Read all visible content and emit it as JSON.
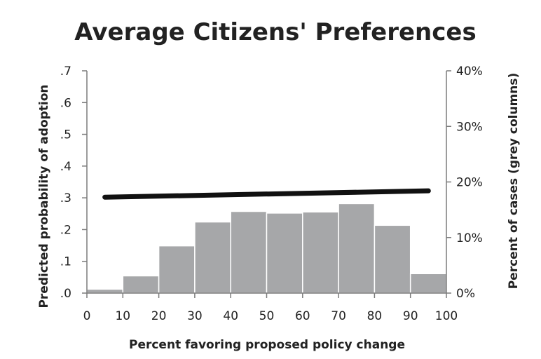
{
  "chart_data": {
    "type": "bar+line",
    "title": "Average Citizens' Preferences",
    "xlabel": "Percent favoring proposed policy change",
    "ylabel_left": "Predicted probability of adoption",
    "ylabel_right": "Percent of cases (grey columns)",
    "x_ticks": [
      "0",
      "10",
      "20",
      "30",
      "40",
      "50",
      "60",
      "70",
      "80",
      "90",
      "100"
    ],
    "y_left_ticks": [
      ".0",
      ".1",
      ".2",
      ".3",
      ".4",
      ".5",
      ".6",
      ".7"
    ],
    "y_right_ticks": [
      "0%",
      "10%",
      "20%",
      "30%",
      "40%"
    ],
    "xlim": [
      0,
      100
    ],
    "ylim_left": [
      0,
      0.7
    ],
    "ylim_right": [
      0,
      40
    ],
    "grid": false,
    "bars": {
      "axis": "right",
      "color": "#a6a7a9",
      "bins": [
        [
          0,
          10
        ],
        [
          10,
          20
        ],
        [
          20,
          30
        ],
        [
          30,
          40
        ],
        [
          40,
          50
        ],
        [
          50,
          60
        ],
        [
          60,
          70
        ],
        [
          70,
          80
        ],
        [
          80,
          90
        ],
        [
          90,
          100
        ]
      ],
      "values": [
        0.7,
        3.1,
        8.5,
        12.8,
        14.7,
        14.4,
        14.6,
        16.1,
        12.2,
        3.5
      ]
    },
    "line": {
      "axis": "left",
      "color": "#111111",
      "x": [
        5,
        95
      ],
      "y": [
        0.302,
        0.322
      ]
    }
  }
}
